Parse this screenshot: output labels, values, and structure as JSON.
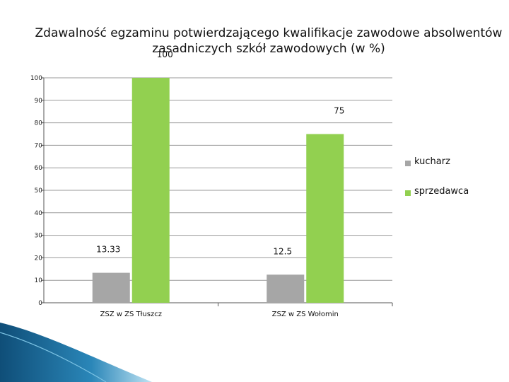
{
  "chart_data": {
    "type": "bar",
    "title": "Zdawalność egzaminu potwierdzającego kwalifikacje zawodowe absolwentów zasadniczych szkół zawodowych (w %)",
    "categories": [
      "ZSZ w ZS Tłuszcz",
      "ZSZ w ZS Wołomin"
    ],
    "series": [
      {
        "name": "kucharz",
        "values": [
          13.33,
          12.5
        ],
        "color": "#a6a6a6"
      },
      {
        "name": "sprzedawca",
        "values": [
          100,
          75
        ],
        "color": "#92d050"
      }
    ],
    "data_labels": [
      "13.33",
      "100",
      "12.5",
      "75"
    ],
    "yticks": [
      0,
      10,
      20,
      30,
      40,
      50,
      60,
      70,
      80,
      90,
      100
    ],
    "ylim": [
      0,
      100
    ],
    "grid": true,
    "legend": "right"
  }
}
